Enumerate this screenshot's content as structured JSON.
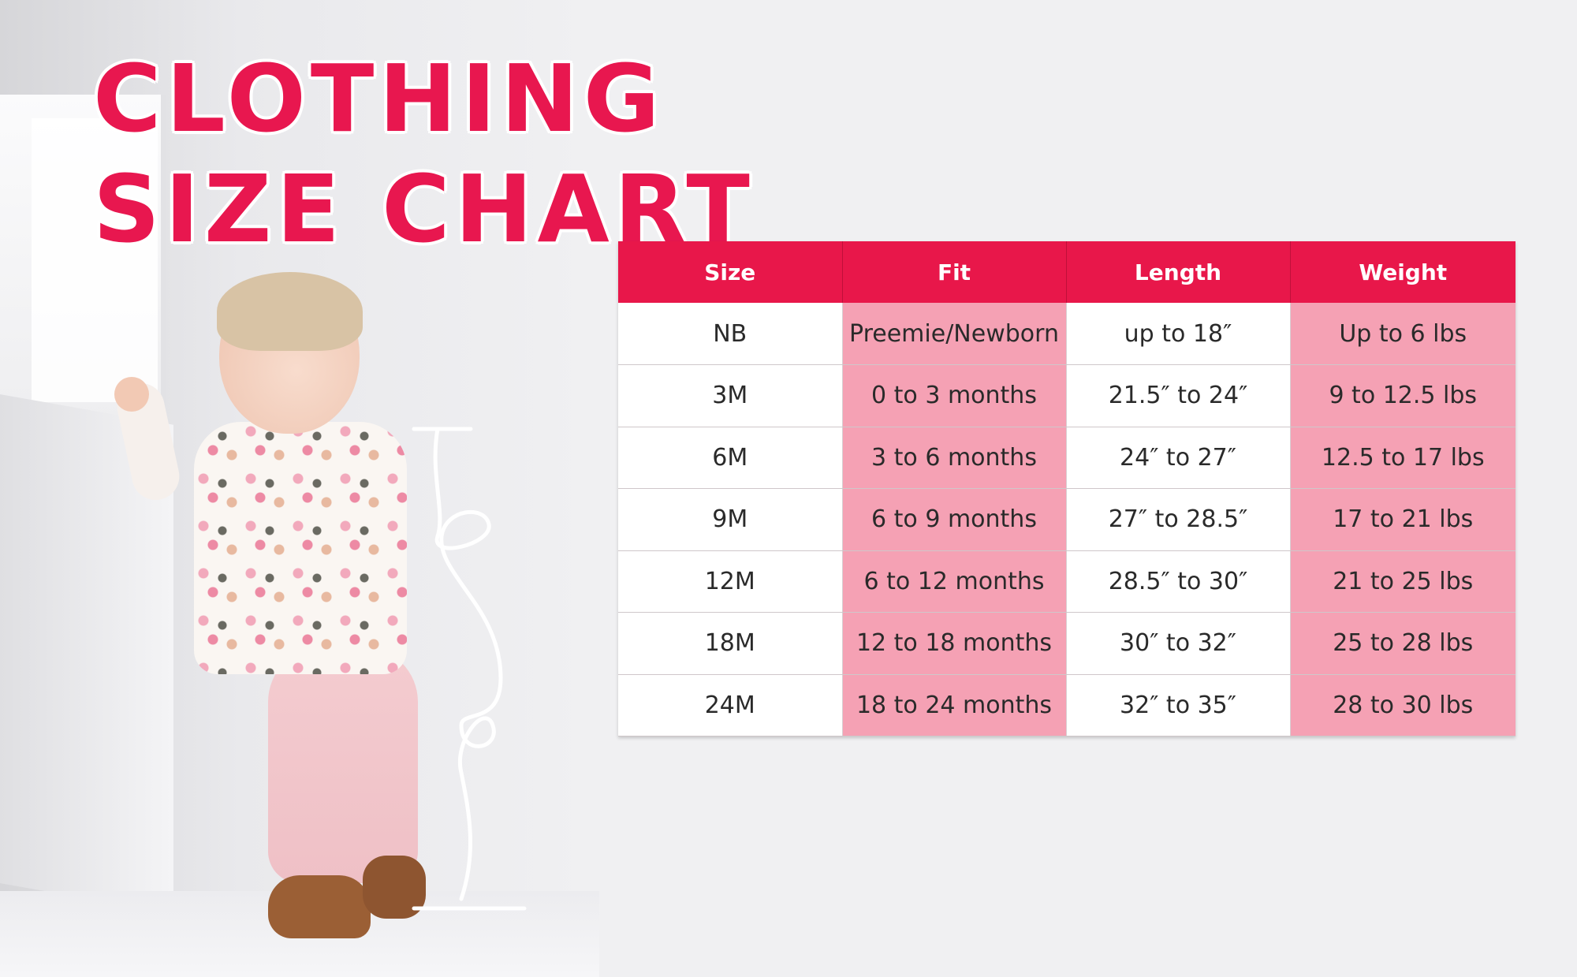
{
  "title": {
    "line1": "CLOTHING",
    "line2": "SIZE CHART"
  },
  "table": {
    "headers": [
      "Size",
      "Fit",
      "Length",
      "Weight"
    ],
    "rows": [
      {
        "size": "NB",
        "fit": "Preemie/Newborn",
        "length": "up to 18″",
        "weight": "Up to 6 lbs"
      },
      {
        "size": "3M",
        "fit": "0 to 3 months",
        "length": "21.5″ to 24″",
        "weight": "9 to 12.5 lbs"
      },
      {
        "size": "6M",
        "fit": "3 to 6 months",
        "length": "24″ to 27″",
        "weight": "12.5 to 17 lbs"
      },
      {
        "size": "9M",
        "fit": "6 to 9  months",
        "length": "27″ to 28.5″",
        "weight": "17 to 21 lbs"
      },
      {
        "size": "12M",
        "fit": "6 to 12  months",
        "length": "28.5″ to 30″",
        "weight": "21 to 25 lbs"
      },
      {
        "size": "18M",
        "fit": "12 to 18  months",
        "length": "30″ to 32″",
        "weight": "25 to 28 lbs"
      },
      {
        "size": "24M",
        "fit": "18 to 24 months",
        "length": "32″ to 35″",
        "weight": "28 to 30 lbs"
      }
    ]
  },
  "colors": {
    "accent": "#e8174a",
    "pink_cell": "#f5a1b4",
    "white_cell": "#ffffff",
    "background": "#f0f0f2"
  }
}
